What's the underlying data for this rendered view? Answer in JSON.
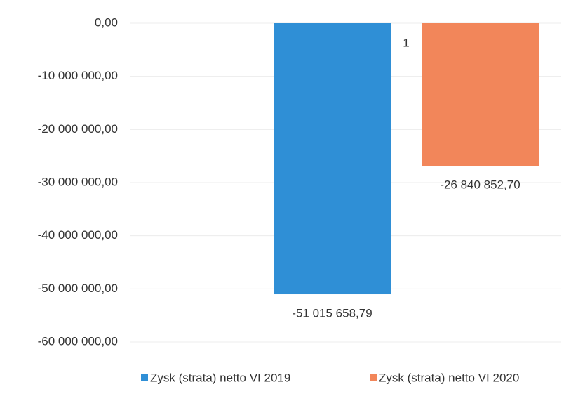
{
  "chart_data": {
    "type": "bar",
    "categories": [
      "1"
    ],
    "series": [
      {
        "name": "Zysk (strata) netto  VI 2019",
        "color": "#2f8fd6",
        "values": [
          -51015658.79
        ],
        "value_labels": [
          "-51 015 658,79"
        ]
      },
      {
        "name": "Zysk (strata) netto  VI 2020",
        "color": "#f2865a",
        "values": [
          -26840852.7
        ],
        "value_labels": [
          "-26 840 852,70"
        ]
      }
    ],
    "ylim": [
      -60000000,
      0
    ],
    "yticks": [
      {
        "value": 0,
        "label": "0,00"
      },
      {
        "value": -10000000,
        "label": "-10 000 000,00"
      },
      {
        "value": -20000000,
        "label": "-20 000 000,00"
      },
      {
        "value": -30000000,
        "label": "-30 000 000,00"
      },
      {
        "value": -40000000,
        "label": "-40 000 000,00"
      },
      {
        "value": -50000000,
        "label": "-50 000 000,00"
      },
      {
        "value": -60000000,
        "label": "-60 000 000,00"
      }
    ],
    "grid": true,
    "legend": "bottom"
  }
}
